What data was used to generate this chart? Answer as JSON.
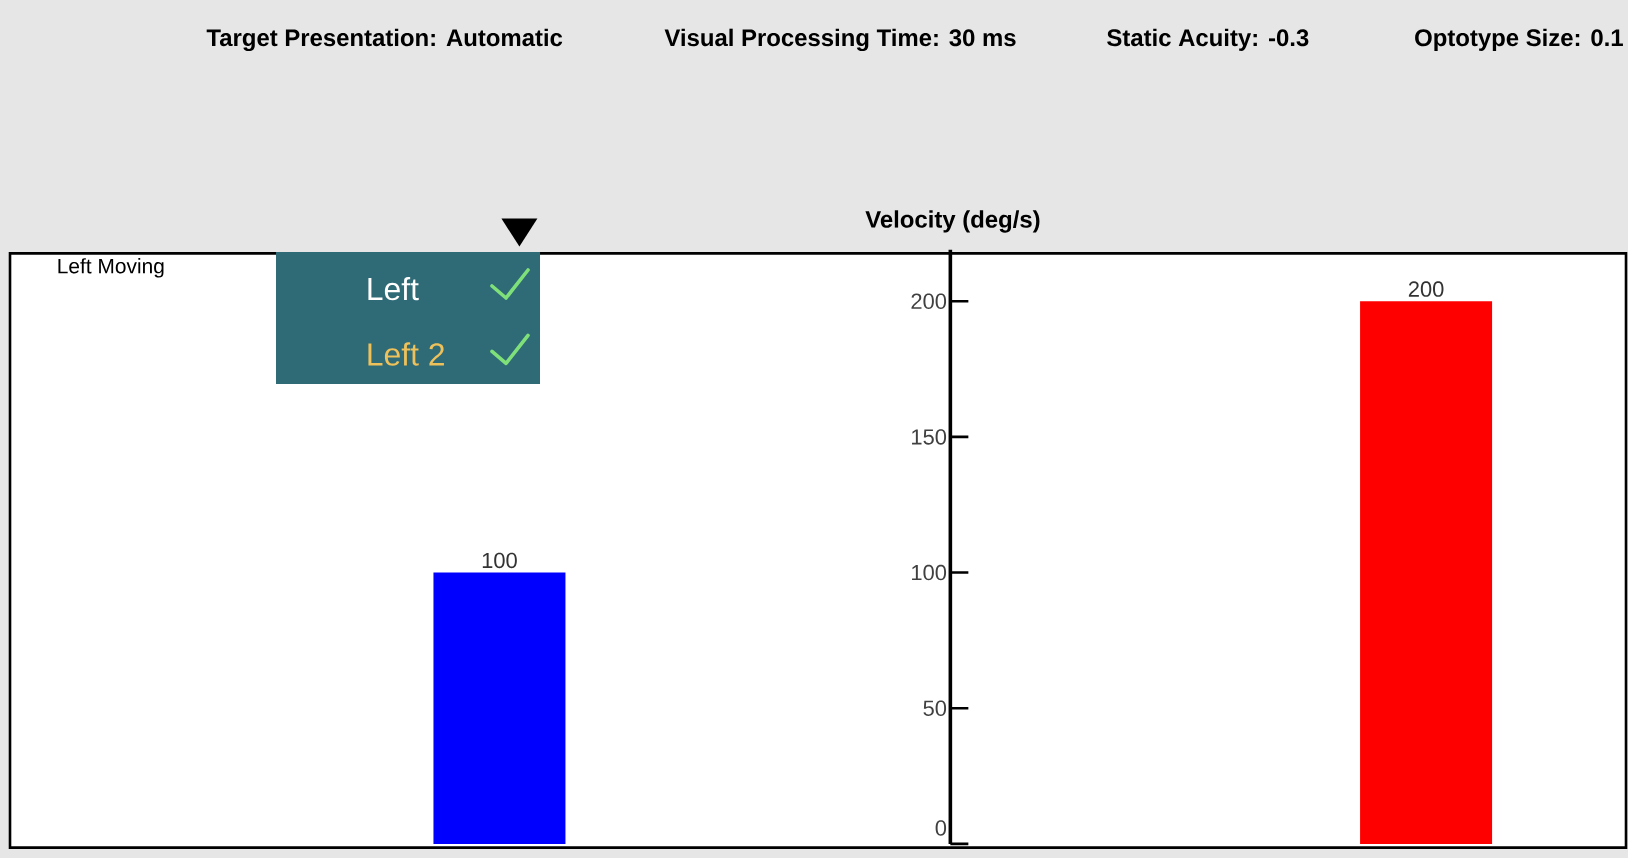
{
  "chart_data": {
    "type": "bar",
    "title": "Left Moving",
    "ylabel": "Velocity (deg/s)",
    "categories": [
      null,
      null
    ],
    "values": [
      100,
      200
    ],
    "colors": [
      "#0000ff",
      "#ff0000"
    ],
    "ylim": [
      0,
      219
    ],
    "yticks": [
      0,
      50,
      100,
      150,
      200
    ],
    "data_labels": true,
    "tick_labels": "y",
    "annotations": [
      "Target Presentation: Automatic",
      "Visual Processing Time: 30 ms",
      "Static Acuity: -0.3",
      "Optotype Size: 0.1",
      "Left",
      "Left 2"
    ]
  }
}
